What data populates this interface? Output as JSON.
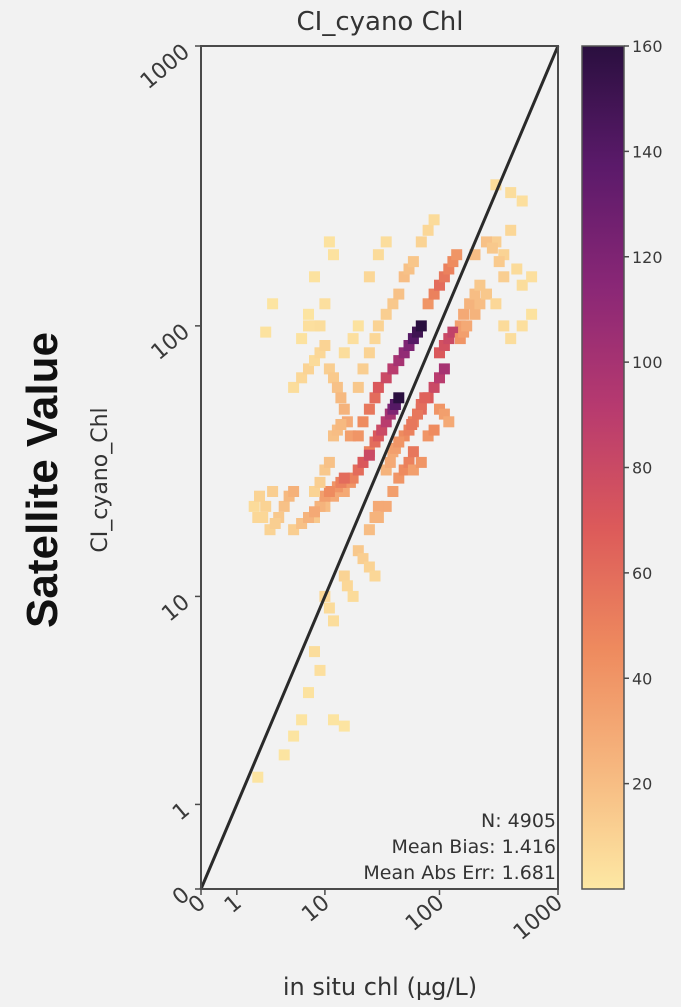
{
  "chart_data": {
    "type": "heatmap",
    "title": "CI_cyano Chl",
    "xlabel": "in situ chl (µg/L)",
    "ylabel": "CI_cyano_Chl",
    "outer_ylabel": "Satellite Value",
    "x_scale": "symlog",
    "y_scale": "symlog",
    "xlim": [
      0,
      1000
    ],
    "ylim": [
      0,
      1000
    ],
    "x_tick_labels": [
      "0",
      "1",
      "10",
      "100",
      "1000"
    ],
    "y_tick_labels": [
      "0",
      "1",
      "10",
      "100",
      "1000"
    ],
    "x_tick_values": [
      0,
      1,
      10,
      100,
      1000
    ],
    "y_tick_values": [
      0,
      1,
      10,
      100,
      1000
    ],
    "reference_line": "1:1",
    "colormap": "magma_r",
    "colorbar": {
      "range": [
        0,
        160
      ],
      "ticks": [
        20,
        40,
        60,
        80,
        100,
        120,
        140,
        160
      ],
      "stops": [
        "#fde8a4",
        "#f6b77f",
        "#ee8a5e",
        "#dc5a5a",
        "#b73a6f",
        "#8a2776",
        "#5b1a6a",
        "#2a0f3f"
      ]
    },
    "stats": {
      "n_label": "N: 4905",
      "bias_label": "Mean Bias: 1.416",
      "err_label": "Mean Abs Err: 1.681"
    },
    "heatmap_cells": [
      [
        7,
        100,
        4
      ],
      [
        8,
        100,
        4
      ],
      [
        9,
        100,
        5
      ],
      [
        8,
        150,
        3
      ],
      [
        10,
        120,
        4
      ],
      [
        11,
        200,
        3
      ],
      [
        12,
        180,
        3
      ],
      [
        2.5,
        95,
        3
      ],
      [
        3,
        120,
        2
      ],
      [
        5,
        60,
        5
      ],
      [
        6,
        65,
        8
      ],
      [
        7,
        70,
        10
      ],
      [
        8,
        75,
        6
      ],
      [
        9,
        80,
        8
      ],
      [
        10,
        85,
        10
      ],
      [
        11,
        70,
        12
      ],
      [
        12,
        65,
        14
      ],
      [
        13,
        60,
        18
      ],
      [
        14,
        55,
        22
      ],
      [
        15,
        50,
        25
      ],
      [
        16,
        45,
        30
      ],
      [
        17,
        40,
        35
      ],
      [
        20,
        40,
        40
      ],
      [
        22,
        45,
        45
      ],
      [
        25,
        50,
        55
      ],
      [
        28,
        55,
        60
      ],
      [
        30,
        60,
        70
      ],
      [
        35,
        65,
        80
      ],
      [
        40,
        70,
        90
      ],
      [
        45,
        75,
        100
      ],
      [
        50,
        80,
        110
      ],
      [
        55,
        85,
        120
      ],
      [
        60,
        90,
        140
      ],
      [
        65,
        95,
        150
      ],
      [
        70,
        100,
        160
      ],
      [
        20,
        30,
        35
      ],
      [
        22,
        32,
        40
      ],
      [
        25,
        35,
        50
      ],
      [
        28,
        38,
        60
      ],
      [
        30,
        40,
        70
      ],
      [
        32,
        42,
        80
      ],
      [
        35,
        45,
        90
      ],
      [
        38,
        48,
        100
      ],
      [
        40,
        50,
        120
      ],
      [
        42,
        52,
        140
      ],
      [
        45,
        55,
        160
      ],
      [
        15,
        25,
        30
      ],
      [
        17,
        27,
        40
      ],
      [
        18,
        28,
        50
      ],
      [
        20,
        30,
        60
      ],
      [
        22,
        32,
        70
      ],
      [
        25,
        34,
        80
      ],
      [
        10,
        22,
        20
      ],
      [
        12,
        24,
        30
      ],
      [
        13,
        26,
        40
      ],
      [
        14,
        27,
        50
      ],
      [
        15,
        28,
        60
      ],
      [
        8,
        20,
        15
      ],
      [
        9,
        22,
        25
      ],
      [
        10,
        24,
        35
      ],
      [
        11,
        25,
        45
      ],
      [
        5,
        18,
        12
      ],
      [
        6,
        19,
        18
      ],
      [
        7,
        20,
        25
      ],
      [
        8,
        21,
        30
      ],
      [
        2.5,
        22,
        10
      ],
      [
        3,
        25,
        12
      ],
      [
        3.5,
        20,
        15
      ],
      [
        4,
        22,
        18
      ],
      [
        4.5,
        24,
        22
      ],
      [
        5,
        25,
        26
      ],
      [
        2.3,
        20,
        8
      ],
      [
        2.8,
        18,
        10
      ],
      [
        3.2,
        19,
        12
      ],
      [
        1.8,
        22,
        6
      ],
      [
        2,
        20,
        8
      ],
      [
        2.1,
        24,
        10
      ],
      [
        30,
        20,
        25
      ],
      [
        35,
        22,
        30
      ],
      [
        40,
        25,
        35
      ],
      [
        45,
        28,
        40
      ],
      [
        50,
        30,
        45
      ],
      [
        55,
        32,
        50
      ],
      [
        60,
        35,
        55
      ],
      [
        70,
        50,
        60
      ],
      [
        80,
        55,
        70
      ],
      [
        90,
        60,
        80
      ],
      [
        100,
        65,
        90
      ],
      [
        110,
        70,
        100
      ],
      [
        80,
        120,
        40
      ],
      [
        90,
        130,
        50
      ],
      [
        100,
        140,
        60
      ],
      [
        110,
        150,
        55
      ],
      [
        120,
        160,
        50
      ],
      [
        130,
        170,
        45
      ],
      [
        140,
        180,
        40
      ],
      [
        150,
        100,
        35
      ],
      [
        160,
        110,
        30
      ],
      [
        180,
        120,
        25
      ],
      [
        200,
        130,
        20
      ],
      [
        220,
        140,
        15
      ],
      [
        300,
        200,
        12
      ],
      [
        350,
        180,
        10
      ],
      [
        400,
        220,
        8
      ],
      [
        450,
        160,
        6
      ],
      [
        500,
        140,
        5
      ],
      [
        600,
        150,
        4
      ],
      [
        200,
        180,
        20
      ],
      [
        250,
        200,
        18
      ],
      [
        280,
        190,
        15
      ],
      [
        320,
        170,
        14
      ],
      [
        350,
        150,
        12
      ],
      [
        20,
        15,
        15
      ],
      [
        22,
        14,
        12
      ],
      [
        25,
        13,
        10
      ],
      [
        28,
        12,
        8
      ],
      [
        15,
        12,
        10
      ],
      [
        16,
        11,
        8
      ],
      [
        18,
        10,
        6
      ],
      [
        10,
        10,
        8
      ],
      [
        11,
        9,
        6
      ],
      [
        12,
        8,
        5
      ],
      [
        8,
        6,
        5
      ],
      [
        9,
        5,
        4
      ],
      [
        7,
        4,
        3
      ],
      [
        6,
        3,
        2
      ],
      [
        5,
        2.5,
        2
      ],
      [
        4,
        2,
        2
      ],
      [
        12,
        3,
        2
      ],
      [
        15,
        2.8,
        2
      ],
      [
        2,
        1.5,
        2
      ],
      [
        60,
        45,
        50
      ],
      [
        65,
        48,
        55
      ],
      [
        70,
        52,
        60
      ],
      [
        75,
        55,
        65
      ],
      [
        50,
        40,
        45
      ],
      [
        55,
        42,
        50
      ],
      [
        58,
        44,
        55
      ],
      [
        40,
        35,
        30
      ],
      [
        42,
        36,
        35
      ],
      [
        45,
        38,
        40
      ],
      [
        35,
        30,
        25
      ],
      [
        38,
        32,
        30
      ],
      [
        25,
        18,
        20
      ],
      [
        28,
        20,
        25
      ],
      [
        30,
        22,
        30
      ],
      [
        100,
        80,
        70
      ],
      [
        110,
        85,
        75
      ],
      [
        120,
        90,
        80
      ],
      [
        130,
        95,
        85
      ],
      [
        150,
        90,
        40
      ],
      [
        160,
        95,
        35
      ],
      [
        170,
        100,
        30
      ],
      [
        200,
        110,
        25
      ],
      [
        220,
        120,
        20
      ],
      [
        250,
        130,
        15
      ],
      [
        20,
        60,
        15
      ],
      [
        22,
        70,
        12
      ],
      [
        25,
        80,
        10
      ],
      [
        28,
        90,
        8
      ],
      [
        30,
        100,
        10
      ],
      [
        35,
        110,
        12
      ],
      [
        40,
        120,
        15
      ],
      [
        45,
        130,
        18
      ],
      [
        50,
        150,
        20
      ],
      [
        55,
        160,
        18
      ],
      [
        60,
        170,
        16
      ],
      [
        70,
        200,
        10
      ],
      [
        80,
        220,
        8
      ],
      [
        90,
        240,
        6
      ],
      [
        15,
        80,
        5
      ],
      [
        18,
        90,
        4
      ],
      [
        20,
        100,
        3
      ],
      [
        6,
        90,
        3
      ],
      [
        7,
        110,
        2
      ],
      [
        300,
        120,
        8
      ],
      [
        350,
        100,
        6
      ],
      [
        400,
        90,
        5
      ],
      [
        500,
        100,
        4
      ],
      [
        600,
        110,
        3
      ],
      [
        400,
        300,
        5
      ],
      [
        500,
        280,
        4
      ],
      [
        300,
        320,
        6
      ],
      [
        25,
        150,
        8
      ],
      [
        30,
        180,
        6
      ],
      [
        35,
        200,
        5
      ],
      [
        12,
        40,
        18
      ],
      [
        13,
        42,
        20
      ],
      [
        14,
        44,
        22
      ],
      [
        10,
        30,
        15
      ],
      [
        11,
        32,
        18
      ],
      [
        8,
        25,
        10
      ],
      [
        9,
        27,
        12
      ],
      [
        100,
        50,
        40
      ],
      [
        110,
        48,
        35
      ],
      [
        120,
        45,
        30
      ],
      [
        80,
        40,
        40
      ],
      [
        90,
        42,
        45
      ],
      [
        60,
        30,
        35
      ],
      [
        70,
        32,
        40
      ]
    ]
  }
}
